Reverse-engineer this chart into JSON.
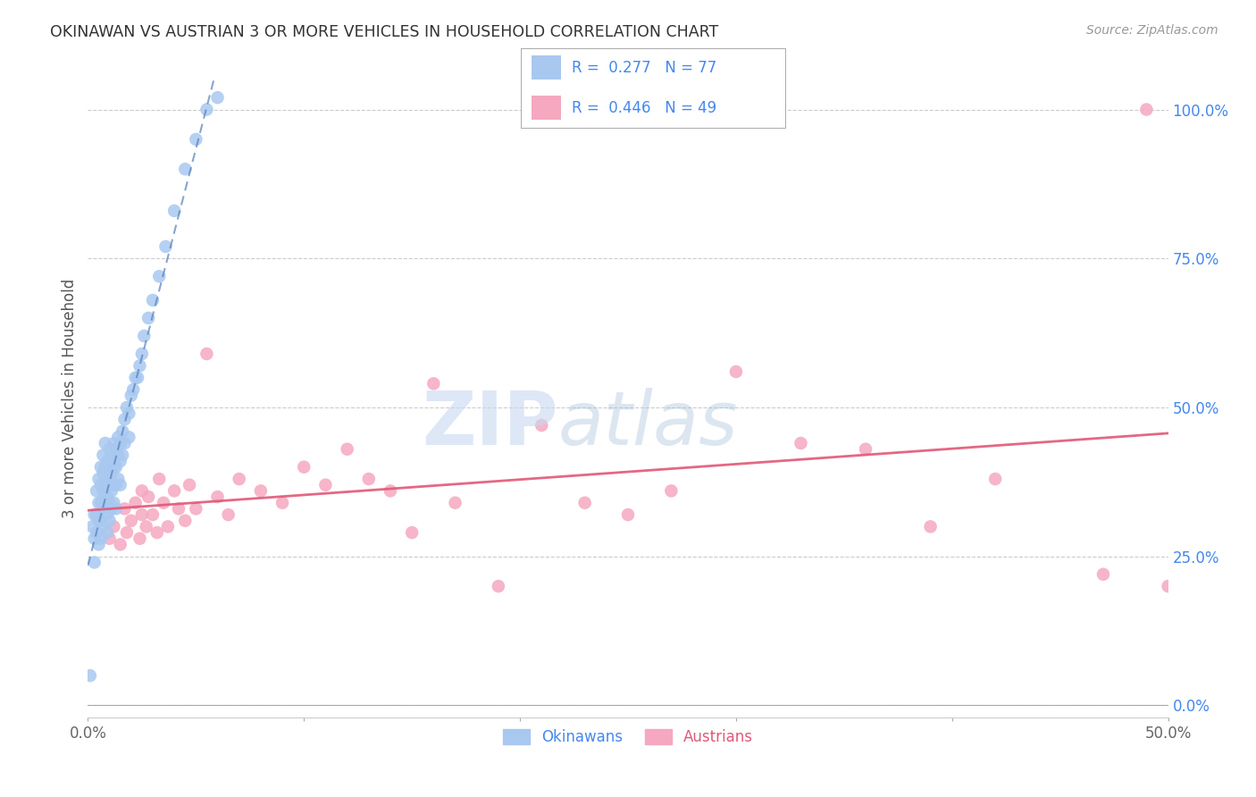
{
  "title": "OKINAWAN VS AUSTRIAN 3 OR MORE VEHICLES IN HOUSEHOLD CORRELATION CHART",
  "source": "Source: ZipAtlas.com",
  "ylabel": "3 or more Vehicles in Household",
  "watermark_zip": "ZIP",
  "watermark_atlas": "atlas",
  "xlim": [
    0.0,
    0.5
  ],
  "ylim": [
    -0.02,
    1.05
  ],
  "xticks": [
    0.0,
    0.05,
    0.1,
    0.15,
    0.2,
    0.25,
    0.3,
    0.35,
    0.4,
    0.45,
    0.5
  ],
  "xtick_labels": [
    "0.0%",
    "",
    "",
    "",
    "",
    "",
    "",
    "",
    "",
    "",
    "50.0%"
  ],
  "yticks_right": [
    0.0,
    0.25,
    0.5,
    0.75,
    1.0
  ],
  "ytick_labels_right": [
    "0.0%",
    "25.0%",
    "50.0%",
    "75.0%",
    "100.0%"
  ],
  "legend_okinawan_R": 0.277,
  "legend_okinawan_N": 77,
  "legend_austrian_R": 0.446,
  "legend_austrian_N": 49,
  "okinawan_color": "#A8C8F0",
  "austrian_color": "#F5A8C0",
  "okinawan_line_color": "#5580BB",
  "austrian_line_color": "#E05878",
  "background_color": "#ffffff",
  "grid_color": "#cccccc",
  "title_color": "#333333",
  "right_tick_color": "#4488EE",
  "legend_R_color": "#4488EE",
  "legend_N_color": "#333333",
  "okinawan_x": [
    0.002,
    0.003,
    0.003,
    0.003,
    0.004,
    0.004,
    0.004,
    0.005,
    0.005,
    0.005,
    0.005,
    0.006,
    0.006,
    0.006,
    0.006,
    0.006,
    0.007,
    0.007,
    0.007,
    0.007,
    0.007,
    0.008,
    0.008,
    0.008,
    0.008,
    0.009,
    0.009,
    0.009,
    0.009,
    0.009,
    0.01,
    0.01,
    0.01,
    0.01,
    0.01,
    0.011,
    0.011,
    0.011,
    0.011,
    0.012,
    0.012,
    0.012,
    0.012,
    0.013,
    0.013,
    0.013,
    0.013,
    0.014,
    0.014,
    0.014,
    0.015,
    0.015,
    0.015,
    0.016,
    0.016,
    0.017,
    0.017,
    0.018,
    0.019,
    0.019,
    0.02,
    0.021,
    0.022,
    0.023,
    0.024,
    0.025,
    0.026,
    0.028,
    0.03,
    0.033,
    0.036,
    0.04,
    0.045,
    0.05,
    0.055,
    0.06,
    0.001
  ],
  "okinawan_y": [
    0.3,
    0.32,
    0.28,
    0.24,
    0.36,
    0.32,
    0.29,
    0.38,
    0.34,
    0.31,
    0.27,
    0.4,
    0.37,
    0.34,
    0.31,
    0.28,
    0.42,
    0.39,
    0.36,
    0.33,
    0.3,
    0.44,
    0.4,
    0.37,
    0.34,
    0.41,
    0.38,
    0.35,
    0.32,
    0.29,
    0.43,
    0.4,
    0.37,
    0.34,
    0.31,
    0.42,
    0.39,
    0.36,
    0.33,
    0.44,
    0.4,
    0.37,
    0.34,
    0.43,
    0.4,
    0.37,
    0.33,
    0.45,
    0.42,
    0.38,
    0.44,
    0.41,
    0.37,
    0.46,
    0.42,
    0.48,
    0.44,
    0.5,
    0.49,
    0.45,
    0.52,
    0.53,
    0.55,
    0.55,
    0.57,
    0.59,
    0.62,
    0.65,
    0.68,
    0.72,
    0.77,
    0.83,
    0.9,
    0.95,
    1.0,
    1.02,
    0.05
  ],
  "austrian_x": [
    0.01,
    0.012,
    0.015,
    0.017,
    0.018,
    0.02,
    0.022,
    0.024,
    0.025,
    0.025,
    0.027,
    0.028,
    0.03,
    0.032,
    0.033,
    0.035,
    0.037,
    0.04,
    0.042,
    0.045,
    0.047,
    0.05,
    0.055,
    0.06,
    0.065,
    0.07,
    0.08,
    0.09,
    0.1,
    0.11,
    0.12,
    0.13,
    0.14,
    0.15,
    0.16,
    0.17,
    0.19,
    0.21,
    0.23,
    0.25,
    0.27,
    0.3,
    0.33,
    0.36,
    0.39,
    0.42,
    0.47,
    0.49,
    0.5
  ],
  "austrian_y": [
    0.28,
    0.3,
    0.27,
    0.33,
    0.29,
    0.31,
    0.34,
    0.28,
    0.36,
    0.32,
    0.3,
    0.35,
    0.32,
    0.29,
    0.38,
    0.34,
    0.3,
    0.36,
    0.33,
    0.31,
    0.37,
    0.33,
    0.59,
    0.35,
    0.32,
    0.38,
    0.36,
    0.34,
    0.4,
    0.37,
    0.43,
    0.38,
    0.36,
    0.29,
    0.54,
    0.34,
    0.2,
    0.47,
    0.34,
    0.32,
    0.36,
    0.56,
    0.44,
    0.43,
    0.3,
    0.38,
    0.22,
    1.0,
    0.2
  ]
}
